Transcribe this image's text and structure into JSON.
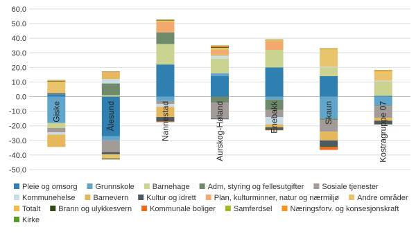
{
  "chart_data": {
    "type": "stacked-bar",
    "categories": [
      "Giske",
      "Ålesund",
      "Nannestad",
      "Aurskog-Høland",
      "Enebakk",
      "Skaun",
      "Kostragruppe 07"
    ],
    "ylim": [
      -50,
      60
    ],
    "yticks": [
      {
        "value": -50,
        "label": "-50.0"
      },
      {
        "value": -40,
        "label": "-40.0"
      },
      {
        "value": -30,
        "label": "-30.0"
      },
      {
        "value": -20,
        "label": "-20.0"
      },
      {
        "value": -10,
        "label": "-10.0"
      },
      {
        "value": 0,
        "label": "0.0"
      },
      {
        "value": 10,
        "label": "10.0"
      },
      {
        "value": 20,
        "label": "20.0"
      },
      {
        "value": 30,
        "label": "30.0"
      },
      {
        "value": 40,
        "label": "40.0"
      },
      {
        "value": 50,
        "label": "50.0"
      },
      {
        "value": 60,
        "label": "60.0"
      }
    ],
    "grid": true,
    "series": [
      {
        "name": "Pleie og omsorg",
        "color": "#2f7fb0",
        "values": [
          1.5,
          -27,
          22,
          14,
          20,
          14,
          0.5
        ]
      },
      {
        "name": "Grunnskole",
        "color": "#62a5cb",
        "values": [
          -18,
          -3,
          -3,
          2,
          -2,
          -15,
          -6
        ]
      },
      {
        "name": "Barnehage",
        "color": "#cad38f",
        "values": [
          -3.5,
          1,
          14,
          10,
          12,
          6,
          10
        ]
      },
      {
        "name": "Adm, styring og fellesutgifter",
        "color": "#6e8a6b",
        "values": [
          0.5,
          8,
          8,
          -4,
          -7,
          -1,
          -0.5
        ]
      },
      {
        "name": "Sosiale tjenester",
        "color": "#a29b97",
        "values": [
          -3,
          -8,
          -2,
          -11,
          -5,
          -8,
          -8
        ]
      },
      {
        "name": "Kommunehelse",
        "color": "#c8dde6",
        "values": [
          -1.5,
          3,
          -2,
          2,
          -5,
          0.5,
          0.5
        ]
      },
      {
        "name": "Barnevern",
        "color": "#e6b85c",
        "values": [
          -8.5,
          3,
          -7,
          1,
          -2,
          -6,
          -2
        ]
      },
      {
        "name": "Kultur og idrett",
        "color": "#4c5a61",
        "values": [
          0.5,
          -1.5,
          -3,
          -0.5,
          -1.5,
          -4,
          -2
        ]
      },
      {
        "name": "Plan, kulturminner, natur og nærmiljø",
        "color": "#f4aa6c",
        "values": [
          0.3,
          1,
          7,
          3,
          6,
          0.5,
          0.5
        ]
      },
      {
        "name": "Andre områder",
        "color": "#e8c46c",
        "values": [
          7,
          -3,
          0.5,
          1,
          0,
          11,
          5
        ]
      },
      {
        "name": "Totalt",
        "color": "#f8b94a",
        "values": [
          0.5,
          0.5,
          0.5,
          0.5,
          0.5,
          0.5,
          1
        ]
      },
      {
        "name": "Brann og ulykkesvern",
        "color": "#2d4a10",
        "values": [
          0.3,
          -0.5,
          0.3,
          0.5,
          -0.3,
          -0.5,
          -0.5
        ]
      },
      {
        "name": "Kommunale boliger",
        "color": "#f06b1e",
        "values": [
          0.2,
          0.2,
          -0.5,
          0.5,
          -0.3,
          -2,
          0.2
        ]
      },
      {
        "name": "Samferdsel",
        "color": "#a4b820",
        "values": [
          0.2,
          0.2,
          0.2,
          0.2,
          0.2,
          0.2,
          0.2
        ]
      },
      {
        "name": "Næringsforv. og konsesjonskraft",
        "color": "#f7931e",
        "values": [
          0.2,
          0.2,
          0.2,
          0.2,
          0.2,
          0.2,
          0.2
        ]
      },
      {
        "name": "Kirke",
        "color": "#5a9a2b",
        "values": [
          0.2,
          0.2,
          0.2,
          0.2,
          0.2,
          0.2,
          0.2
        ]
      }
    ]
  }
}
